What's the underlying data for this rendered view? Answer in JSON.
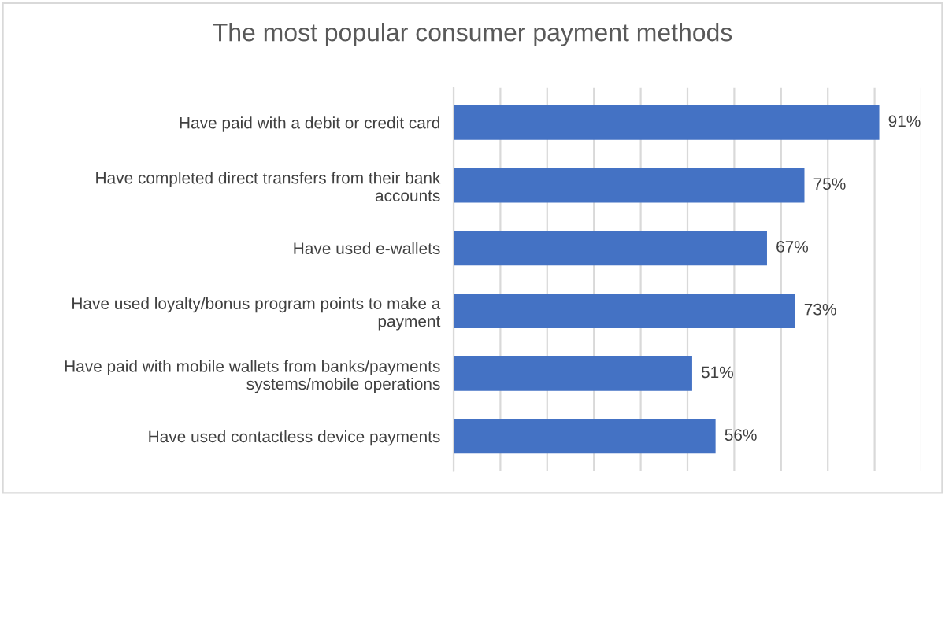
{
  "chart_data": {
    "type": "bar",
    "orientation": "horizontal",
    "title": "The most popular consumer payment methods",
    "categories": [
      "Have paid with a debit or credit card",
      "Have completed direct transfers from their bank accounts",
      "Have used e-wallets",
      "Have used loyalty/bonus program points to make a payment",
      "Have paid with mobile wallets from banks/payments systems/mobile operations",
      "Have used contactless device payments"
    ],
    "values": [
      91,
      75,
      67,
      73,
      51,
      56
    ],
    "value_labels": [
      "91%",
      "75%",
      "67%",
      "73%",
      "51%",
      "56%"
    ],
    "color": "#4472c4",
    "xlim": [
      0,
      100
    ],
    "xticks": [
      {
        "value": 0,
        "label": null
      },
      {
        "value": 10,
        "label": null
      },
      {
        "value": 20,
        "label": null
      },
      {
        "value": 30,
        "label": null
      },
      {
        "value": 40,
        "label": null
      },
      {
        "value": 50,
        "label": null
      },
      {
        "value": 60,
        "label": null
      },
      {
        "value": 70,
        "label": null
      },
      {
        "value": 80,
        "label": null
      },
      {
        "value": 90,
        "label": null
      },
      {
        "value": 100,
        "label": null
      }
    ],
    "grid": "x",
    "legend": false,
    "tick_labels": "y"
  }
}
